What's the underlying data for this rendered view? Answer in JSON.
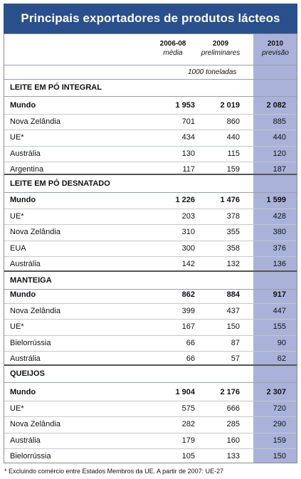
{
  "title": "Principais exportadores de produtos lácteos",
  "columns": [
    {
      "year": "2006-08",
      "sub": "média"
    },
    {
      "year": "2009",
      "sub": "preliminares"
    },
    {
      "year": "2010",
      "sub": "previsão"
    }
  ],
  "unit": "1000 toneladas",
  "sections": [
    {
      "title": "LEITE EM PÓ INTEGRAL",
      "rows": [
        {
          "label": "Mundo",
          "v1": "1 953",
          "v2": "2 019",
          "v3": "2 082",
          "bold": true
        },
        {
          "label": "Nova Zelândia",
          "v1": "701",
          "v2": "860",
          "v3": "885"
        },
        {
          "label": "UE*",
          "v1": "434",
          "v2": "440",
          "v3": "440"
        },
        {
          "label": "Austrália",
          "v1": "130",
          "v2": "115",
          "v3": "120"
        },
        {
          "label": "Argentina",
          "v1": "117",
          "v2": "159",
          "v3": "187"
        }
      ]
    },
    {
      "title": "LEITE EM PÓ DESNATADO",
      "rows": [
        {
          "label": "Mundo",
          "v1": "1 226",
          "v2": "1 476",
          "v3": "1 599",
          "bold": true
        },
        {
          "label": "UE*",
          "v1": "203",
          "v2": "378",
          "v3": "428"
        },
        {
          "label": "Nova Zelândia",
          "v1": "310",
          "v2": "355",
          "v3": "380"
        },
        {
          "label": "EUA",
          "v1": "300",
          "v2": "358",
          "v3": "376"
        },
        {
          "label": "Austrália",
          "v1": "142",
          "v2": "132",
          "v3": "136"
        }
      ]
    },
    {
      "title": "MANTEIGA",
      "rows": [
        {
          "label": "Mundo",
          "v1": "862",
          "v2": "884",
          "v3": "917",
          "bold": true
        },
        {
          "label": "Nova Zelândia",
          "v1": "399",
          "v2": "437",
          "v3": "447"
        },
        {
          "label": "UE*",
          "v1": "167",
          "v2": "150",
          "v3": "155"
        },
        {
          "label": "Bielorrússia",
          "v1": "66",
          "v2": "87",
          "v3": "90"
        },
        {
          "label": "Austrália",
          "v1": "66",
          "v2": "57",
          "v3": "62"
        }
      ]
    },
    {
      "title": "QUEIJOS",
      "rows": [
        {
          "label": "Mundo",
          "v1": "1 904",
          "v2": "2 176",
          "v3": "2 307",
          "bold": true
        },
        {
          "label": "UE*",
          "v1": "575",
          "v2": "666",
          "v3": "720"
        },
        {
          "label": "Nova Zelândia",
          "v1": "282",
          "v2": "285",
          "v3": "290"
        },
        {
          "label": "Austrália",
          "v1": "179",
          "v2": "160",
          "v3": "159"
        },
        {
          "label": "Bielorrússia",
          "v1": "105",
          "v2": "133",
          "v3": "150"
        }
      ]
    }
  ],
  "footnote": "* Excluindo comércio entre Estados Membros da UE. A partir de 2007: UE-27",
  "colors": {
    "title_bg": "#2a4f8d",
    "highlight_col": "#aab2da"
  }
}
